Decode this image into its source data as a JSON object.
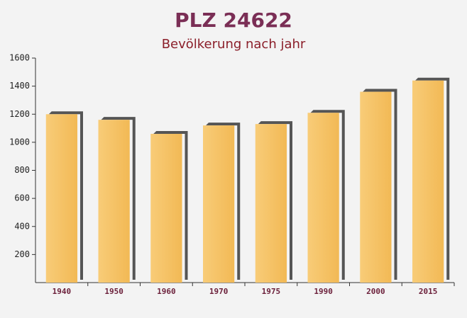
{
  "chart_data": {
    "type": "bar",
    "title": "PLZ 24622",
    "subtitle": "Bevölkerung nach jahr",
    "categories": [
      "1940",
      "1950",
      "1960",
      "1970",
      "1975",
      "1990",
      "2000",
      "2015"
    ],
    "values": [
      1200,
      1160,
      1060,
      1120,
      1130,
      1210,
      1360,
      1440
    ],
    "color": "#f6c56e",
    "ylim": [
      0,
      1600
    ],
    "yticks": [
      200,
      400,
      600,
      800,
      1000,
      1200,
      1400,
      1600
    ],
    "grid": false
  }
}
